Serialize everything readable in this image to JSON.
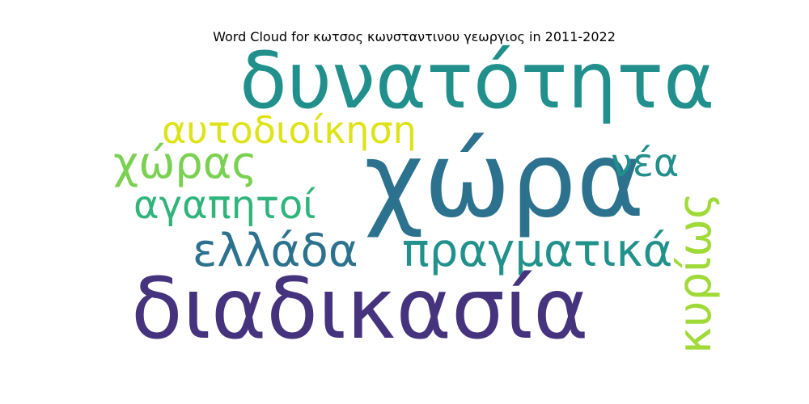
{
  "chart_data": {
    "type": "wordcloud",
    "title": "Word Cloud for κωτσος κωνσταντινου γεωργιος in 2011-2022",
    "words": [
      {
        "text": "δυνατότητα",
        "color": "#21908d"
      },
      {
        "text": "αυτοδιοίκηση",
        "color": "#dde318"
      },
      {
        "text": "χώρας",
        "color": "#7ad151"
      },
      {
        "text": "χώρα",
        "color": "#2c728e"
      },
      {
        "text": "νέα",
        "color": "#21908d"
      },
      {
        "text": "αγαπητοί",
        "color": "#2fb47c"
      },
      {
        "text": "κυρίως",
        "color": "#a0da39"
      },
      {
        "text": "ελλάδα",
        "color": "#2c728e"
      },
      {
        "text": "πραγματικά",
        "color": "#21918c"
      },
      {
        "text": "διαδικασία",
        "color": "#46337e"
      }
    ]
  }
}
